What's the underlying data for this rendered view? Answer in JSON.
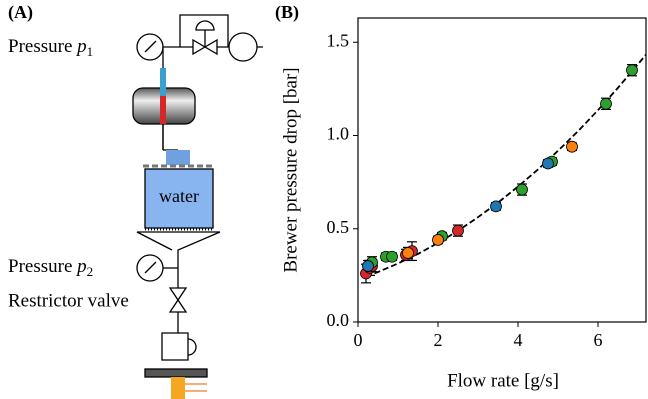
{
  "diagram": {
    "label": "(A)",
    "gauge_1": {
      "label": "Pressure",
      "symbol": "p",
      "subscript": "1"
    },
    "vessel": "water",
    "gauge_2": {
      "label": "Pressure",
      "symbol": "p",
      "subscript": "2"
    },
    "valve": "Restrictor valve"
  },
  "chart_data": {
    "type": "scatter",
    "label": "(B)",
    "x_label": "Flow rate [g/s]",
    "y_label": "Brewer pressure drop [bar]",
    "xlim": [
      0,
      7.2
    ],
    "ylim": [
      0,
      1.63
    ],
    "xticks": [
      0,
      2,
      4,
      6
    ],
    "yticks": [
      {
        "value": 0,
        "label": "0.0"
      },
      {
        "value": 0.5,
        "label": "0.5"
      },
      {
        "value": 1,
        "label": "1.0"
      },
      {
        "value": 1.5,
        "label": "1.5"
      }
    ],
    "fit": {
      "color": "#000000",
      "x": [
        0.2,
        0.5,
        1,
        1.5,
        2,
        2.5,
        3,
        3.5,
        4,
        4.5,
        5,
        5.5,
        6,
        6.5,
        7,
        7.2
      ],
      "values": [
        0.245,
        0.268,
        0.314,
        0.365,
        0.424,
        0.489,
        0.562,
        0.64,
        0.726,
        0.818,
        0.918,
        1.023,
        1.136,
        1.256,
        1.382,
        1.434
      ]
    },
    "series": [
      {
        "color": "#d62728",
        "x": [
          0.2,
          0.3,
          0.35,
          1.2,
          1.35,
          2.5
        ],
        "values": [
          0.26,
          0.29,
          0.3,
          0.36,
          0.38,
          0.49
        ],
        "errors": [
          0.05,
          0.04,
          0.03,
          0.03,
          0.05,
          0.03
        ]
      },
      {
        "color": "#2ca02c",
        "x": [
          0.35,
          0.7,
          0.85,
          2.1,
          4.1,
          4.85,
          6.2,
          6.85
        ],
        "values": [
          0.32,
          0.35,
          0.35,
          0.46,
          0.71,
          0.86,
          1.17,
          1.35
        ],
        "errors": [
          0.03,
          0.02,
          0.02,
          0.02,
          0.03,
          0.02,
          0.03,
          0.03
        ]
      },
      {
        "color": "#1f77b4",
        "x": [
          0.25,
          3.45,
          4.75
        ],
        "values": [
          0.3,
          0.62,
          0.85
        ],
        "errors": [
          0.03,
          0.02,
          0.02
        ]
      },
      {
        "color": "#ff7f0e",
        "x": [
          1.25,
          2.0,
          5.35
        ],
        "values": [
          0.37,
          0.44,
          0.94
        ],
        "errors": [
          0.03,
          0.02,
          0.02
        ]
      }
    ]
  }
}
